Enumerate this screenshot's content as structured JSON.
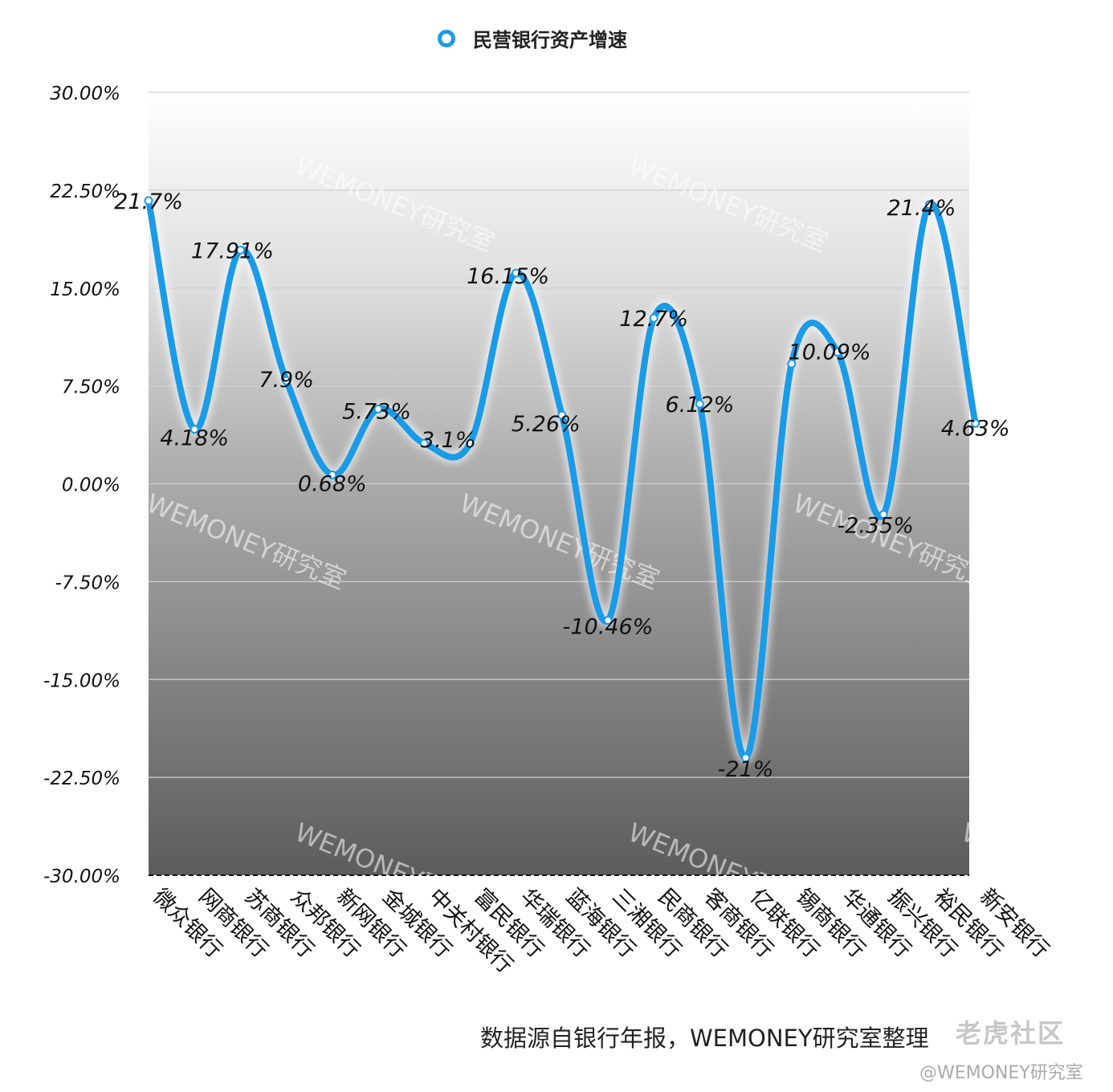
{
  "chart_data": {
    "type": "line",
    "categories": [
      "微众银行",
      "网商银行",
      "苏商银行",
      "众邦银行",
      "新网银行",
      "金城银行",
      "中关村银行",
      "富民银行",
      "华瑞银行",
      "蓝海银行",
      "三湘银行",
      "民商银行",
      "客商银行",
      "亿联银行",
      "锡商银行",
      "华通银行",
      "振兴银行",
      "裕民银行",
      "新安银行"
    ],
    "series": [
      {
        "name": "民营银行资产增速",
        "values": [
          21.7,
          4.18,
          17.91,
          7.9,
          0.68,
          5.73,
          3.1,
          3.1,
          16.15,
          5.26,
          -10.46,
          12.7,
          6.12,
          -21,
          9.2,
          10.09,
          -2.35,
          21.4,
          4.63
        ],
        "labels": [
          "21.7%",
          "4.18%",
          "17.91%",
          "7.9%",
          "0.68%",
          "5.73%",
          "3.1%",
          "",
          "16.15%",
          "5.26%",
          "-10.46%",
          "12.7%",
          "6.12%",
          "-21%",
          "",
          "10.09%",
          "-2.35%",
          "21.4%",
          "4.63%"
        ],
        "color": "#1a9be8"
      }
    ],
    "yticks": [
      "30.00%",
      "22.50%",
      "15.00%",
      "7.50%",
      "0.00%",
      "-7.50%",
      "-15.00%",
      "-22.50%",
      "-30.00%"
    ],
    "ylim": [
      -30,
      30
    ],
    "grid": true,
    "legend": "top-center"
  },
  "footnote": "数据源自银行年报，WEMONEY研究室整理",
  "watermarks": {
    "plot_text": "WEMONEY研究室",
    "site": "老虎社区",
    "handle": "@WEMONEY研究室"
  }
}
